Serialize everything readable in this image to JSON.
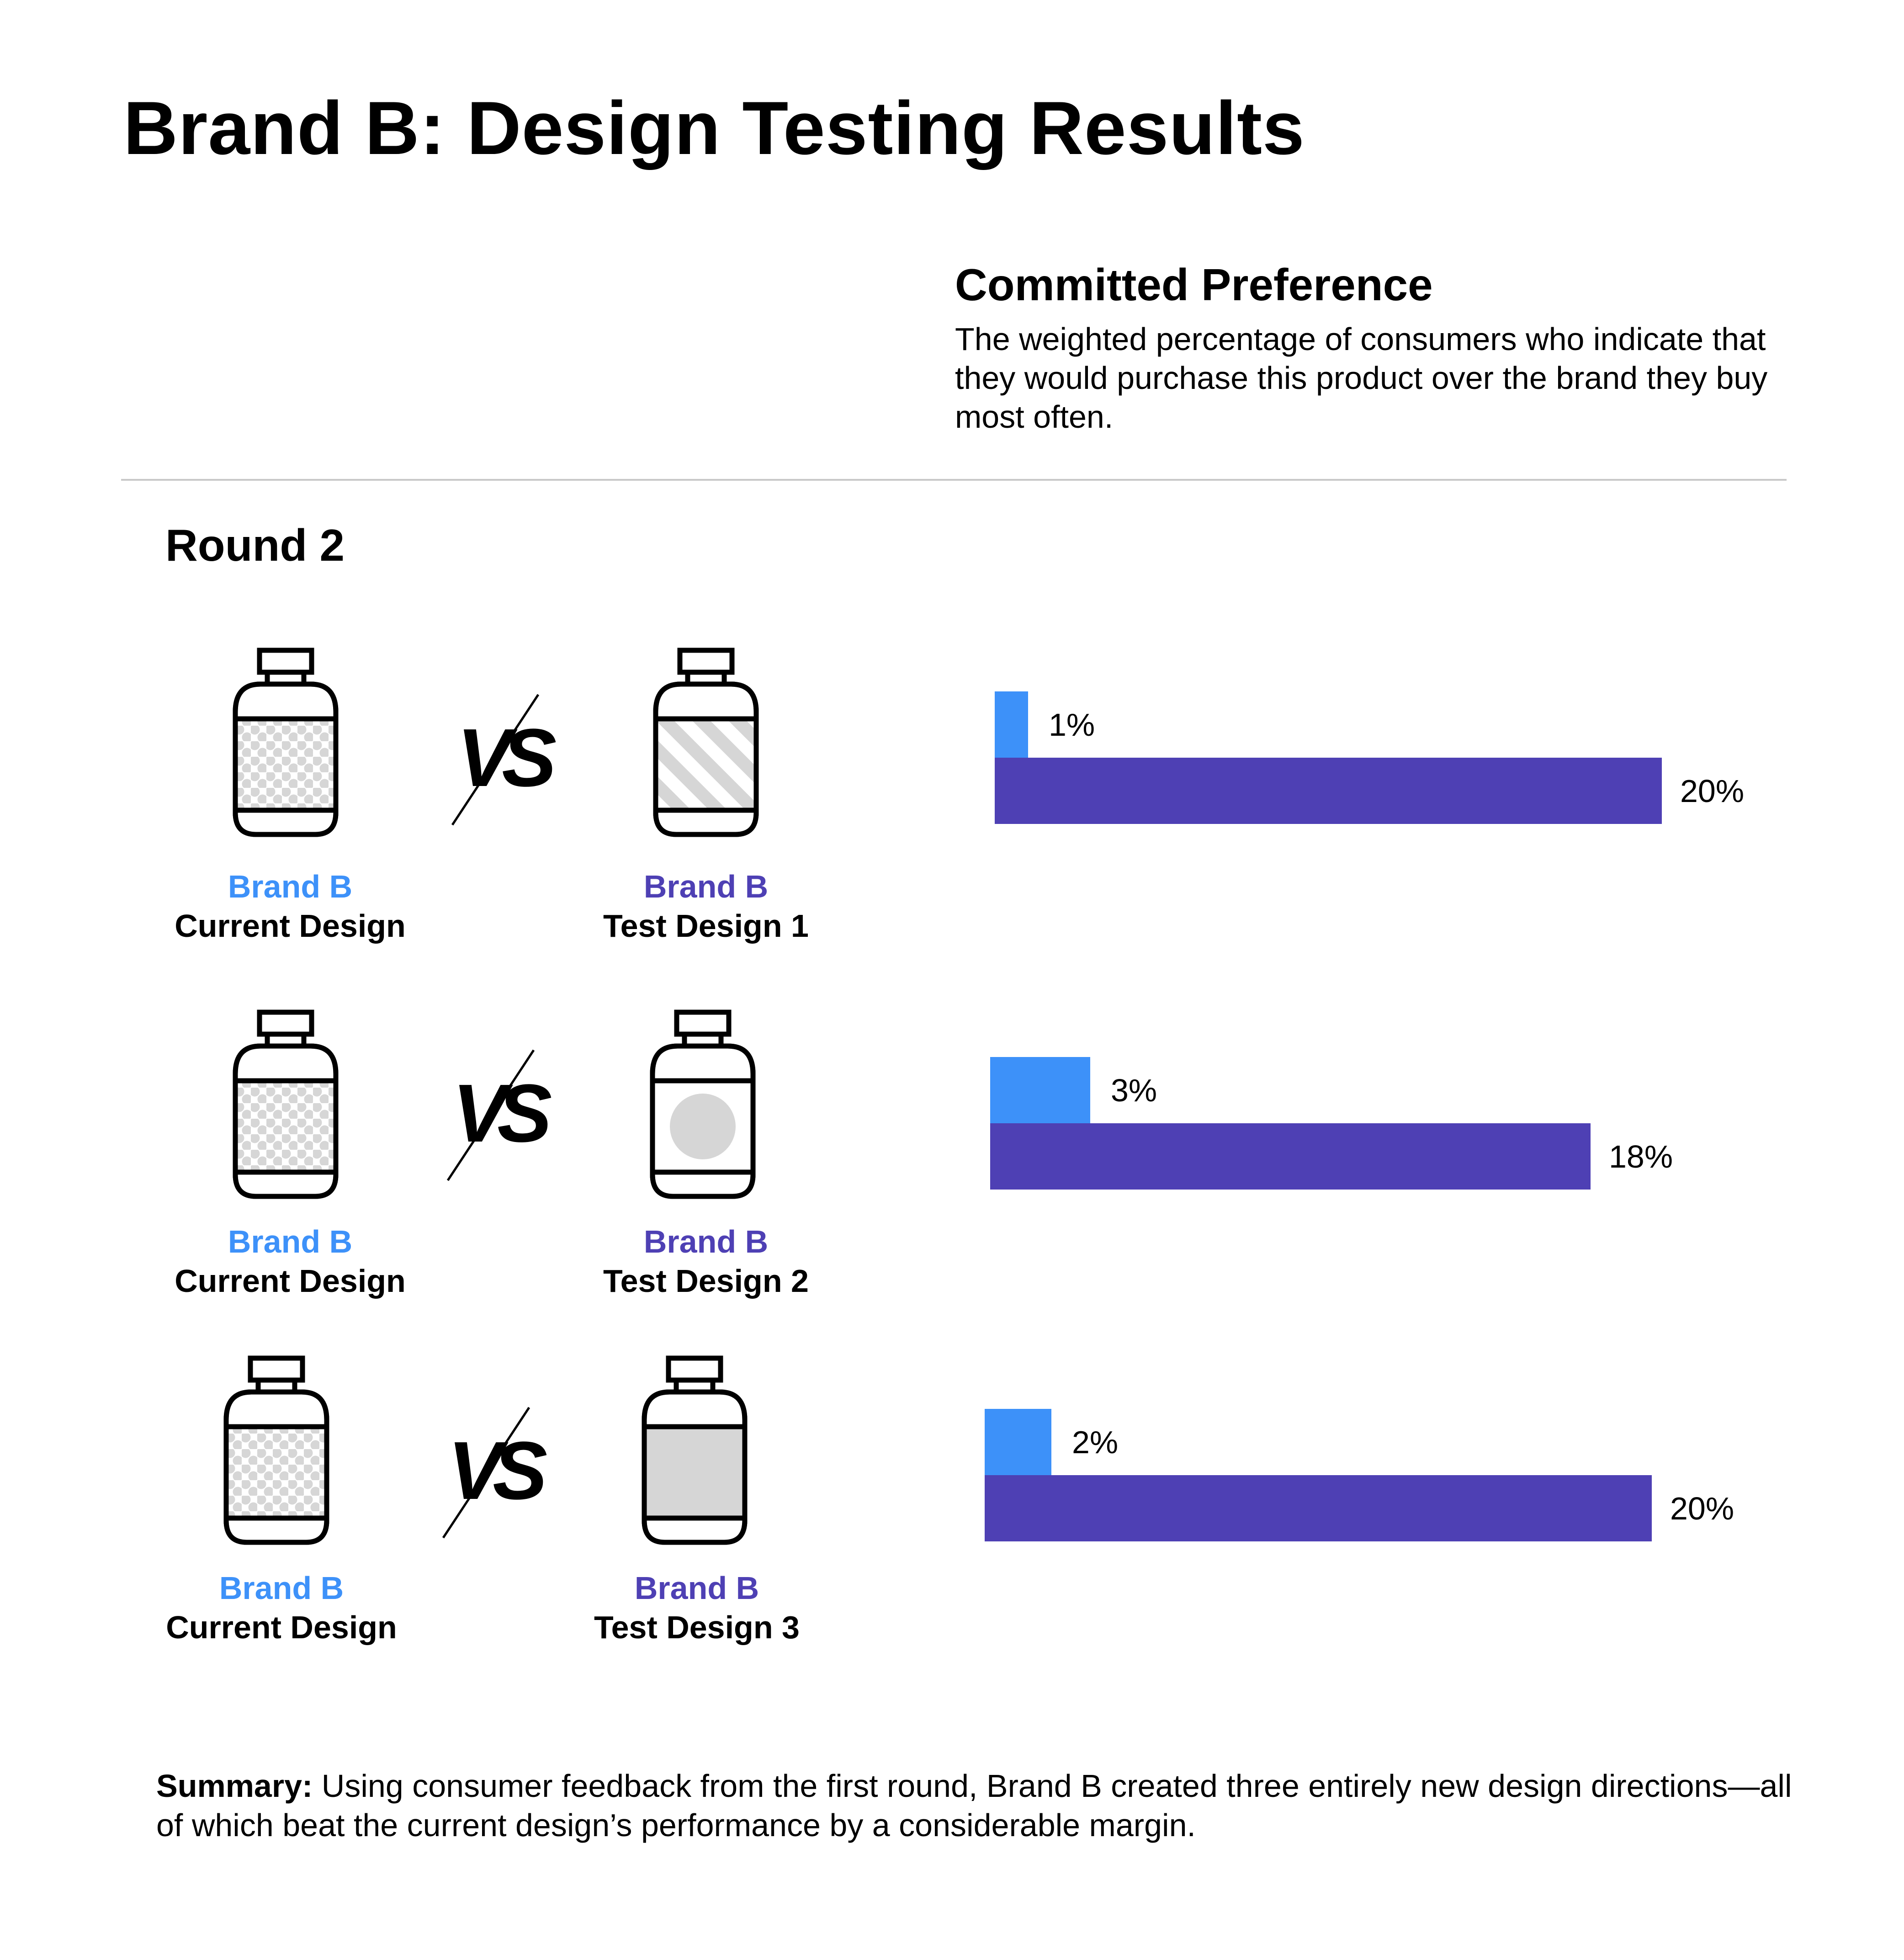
{
  "title": "Brand B: Design Testing Results",
  "section": {
    "title": "Committed Preference",
    "description": "The weighted percentage of consumers who indicate that they would purchase this product over the brand they buy most often."
  },
  "round_label": "Round 2",
  "vs_label": "VS",
  "colors": {
    "current": "#3d91f9",
    "test": "#4e40b4",
    "label_fill": "#d6d6d6",
    "outline": "#000000",
    "divider": "#c8c8c8"
  },
  "comparisons": [
    {
      "current": {
        "brand": "Brand B",
        "design": "Current Design",
        "pattern": "dots"
      },
      "test": {
        "brand": "Brand B",
        "design": "Test Design 1",
        "pattern": "stripes"
      }
    },
    {
      "current": {
        "brand": "Brand B",
        "design": "Current Design",
        "pattern": "dots"
      },
      "test": {
        "brand": "Brand B",
        "design": "Test Design 2",
        "pattern": "circle"
      }
    },
    {
      "current": {
        "brand": "Brand B",
        "design": "Current Design",
        "pattern": "dots"
      },
      "test": {
        "brand": "Brand B",
        "design": "Test Design 3",
        "pattern": "solid"
      }
    }
  ],
  "chart_data": {
    "type": "bar",
    "orientation": "horizontal",
    "title": "Committed Preference",
    "categories": [
      "Test Design 1",
      "Test Design 2",
      "Test Design 3"
    ],
    "series": [
      {
        "name": "Current Design",
        "values": [
          1,
          3,
          2
        ],
        "labels": [
          "1%",
          "3%",
          "2%"
        ]
      },
      {
        "name": "Test Design 1 / 2 / 3",
        "values": [
          20,
          18,
          20
        ],
        "labels": [
          "20%",
          "18%",
          "20%"
        ]
      }
    ],
    "unit": "%",
    "xlim": [
      0,
      20
    ]
  },
  "summary": {
    "label": "Summary:",
    "text": " Using consumer feedback from the first round, Brand B created three entirely new design directions—all of which beat the current design’s performance by a considerable margin."
  }
}
